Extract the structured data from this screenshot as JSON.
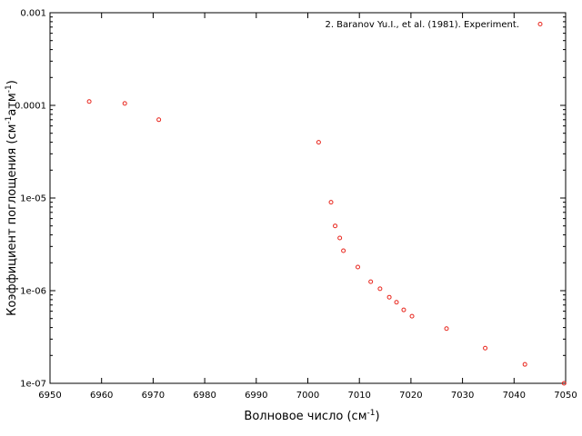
{
  "chart_data": {
    "type": "scatter",
    "xlabel": "Волновое число (см",
    "xlabel_sup": "-1",
    "xlabel_end": ")",
    "ylabel_parts": [
      "Коэффициент поглощения (см",
      "-1",
      "атм",
      "-1",
      ")"
    ],
    "xlim": [
      6950,
      7050
    ],
    "ylim": [
      1e-07,
      0.001
    ],
    "yscale": "log",
    "x_ticks": [
      "6950",
      "6960",
      "6970",
      "6980",
      "6990",
      "7000",
      "7010",
      "7020",
      "7030",
      "7040",
      "7050"
    ],
    "y_ticks": [
      {
        "value": 0.001,
        "label": "0.001"
      },
      {
        "value": 0.0001,
        "label": "0.0001"
      },
      {
        "value": 1e-05,
        "label": "1e-05"
      },
      {
        "value": 1e-06,
        "label": "1e-06"
      },
      {
        "value": 1e-07,
        "label": "1e-07"
      }
    ],
    "legend_position": "top-right",
    "grid": false,
    "series": [
      {
        "name": "2. Baranov Yu.I., et al. (1981). Experiment.",
        "color": "#e8251c",
        "marker": "open-circle",
        "points": [
          [
            6957.6,
            0.00011
          ],
          [
            6964.5,
            0.000105
          ],
          [
            6971.1,
            7e-05
          ],
          [
            7002.1,
            4e-05
          ],
          [
            7004.5,
            9e-06
          ],
          [
            7005.3,
            5e-06
          ],
          [
            7006.2,
            3.7e-06
          ],
          [
            7006.9,
            2.7e-06
          ],
          [
            7009.7,
            1.8e-06
          ],
          [
            7012.2,
            1.25e-06
          ],
          [
            7014.0,
            1.05e-06
          ],
          [
            7015.8,
            8.5e-07
          ],
          [
            7017.2,
            7.5e-07
          ],
          [
            7018.6,
            6.2e-07
          ],
          [
            7020.2,
            5.3e-07
          ],
          [
            7026.9,
            3.9e-07
          ],
          [
            7034.4,
            2.4e-07
          ],
          [
            7042.1,
            1.6e-07
          ],
          [
            7049.7,
            1e-07
          ]
        ]
      }
    ]
  }
}
